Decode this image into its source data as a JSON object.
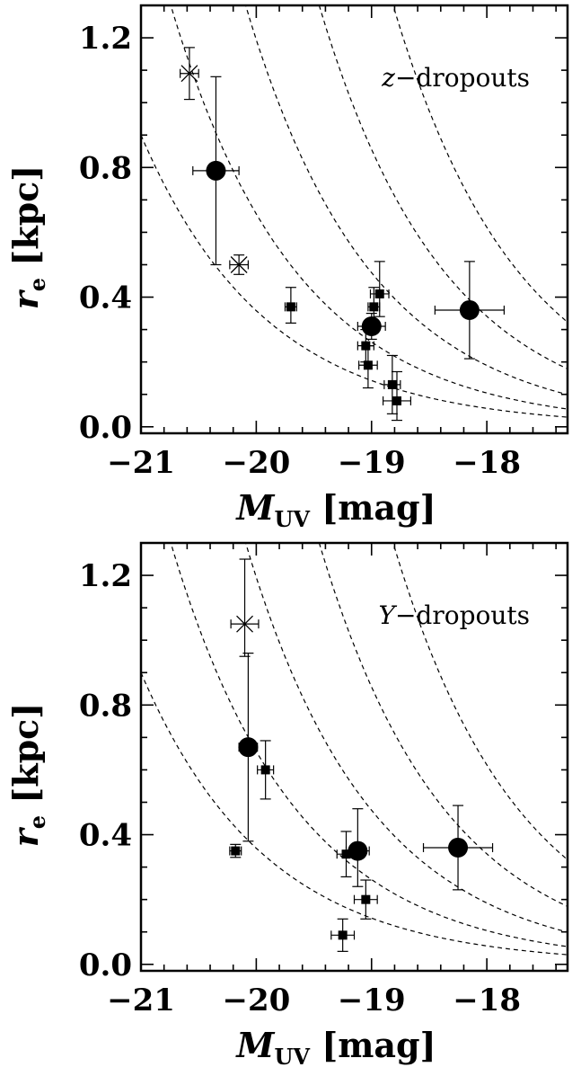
{
  "chart_data": [
    {
      "type": "scatter",
      "title": "",
      "annotation": {
        "prefix": "z",
        "text": "−dropouts"
      },
      "xlabel": {
        "main": "M",
        "sub": "UV",
        "unit": " [mag]"
      },
      "ylabel": {
        "main": "r",
        "sub": "e",
        "unit": " [kpc]"
      },
      "xlim": [
        -21,
        -17.3
      ],
      "ylim": [
        -0.02,
        1.3
      ],
      "xticks": [
        -21,
        -20,
        -19,
        -18
      ],
      "xtick_labels": [
        "−21",
        "−20",
        "−19",
        "−18"
      ],
      "yticks": [
        0.0,
        0.4,
        0.8,
        1.2
      ],
      "ytick_labels": [
        "0.0",
        "0.4",
        "0.8",
        "1.2"
      ],
      "curve_constants": [
        1.2,
        2.2,
        4.0,
        7.2,
        13.0
      ],
      "series": [
        {
          "marker": "square",
          "points": [
            {
              "x": -19.7,
              "y": 0.37,
              "xerr": 0.05,
              "yerr": [
                0.05,
                0.06
              ]
            },
            {
              "x": -19.05,
              "y": 0.25,
              "xerr": 0.07,
              "yerr": [
                0.05,
                0.05
              ]
            },
            {
              "x": -19.03,
              "y": 0.19,
              "xerr": 0.08,
              "yerr": [
                0.07,
                0.06
              ]
            },
            {
              "x": -18.98,
              "y": 0.37,
              "xerr": 0.05,
              "yerr": [
                0.05,
                0.06
              ]
            },
            {
              "x": -18.93,
              "y": 0.41,
              "xerr": 0.08,
              "yerr": [
                0.07,
                0.1
              ]
            },
            {
              "x": -18.82,
              "y": 0.13,
              "xerr": 0.07,
              "yerr": [
                0.09,
                0.09
              ]
            },
            {
              "x": -18.78,
              "y": 0.08,
              "xerr": 0.12,
              "yerr": [
                0.06,
                0.09
              ]
            }
          ]
        },
        {
          "marker": "circle",
          "points": [
            {
              "x": -20.35,
              "y": 0.79,
              "xerr": 0.2,
              "yerr": [
                0.29,
                0.29
              ]
            },
            {
              "x": -19.0,
              "y": 0.31,
              "xerr": 0.12,
              "yerr": [
                0.04,
                0.04
              ]
            },
            {
              "x": -18.15,
              "y": 0.36,
              "xerr": 0.3,
              "yerr": [
                0.15,
                0.15
              ]
            }
          ]
        },
        {
          "marker": "cross",
          "points": [
            {
              "x": -20.58,
              "y": 1.09,
              "xerr": 0.08,
              "yerr": [
                0.08,
                0.08
              ]
            },
            {
              "x": -20.15,
              "y": 0.5,
              "xerr": 0.08,
              "yerr": [
                0.03,
                0.03
              ]
            }
          ]
        }
      ]
    },
    {
      "type": "scatter",
      "title": "",
      "annotation": {
        "prefix": "Y",
        "text": "−dropouts"
      },
      "xlabel": {
        "main": "M",
        "sub": "UV",
        "unit": " [mag]"
      },
      "ylabel": {
        "main": "r",
        "sub": "e",
        "unit": " [kpc]"
      },
      "xlim": [
        -21,
        -17.3
      ],
      "ylim": [
        -0.02,
        1.3
      ],
      "xticks": [
        -21,
        -20,
        -19,
        -18
      ],
      "xtick_labels": [
        "−21",
        "−20",
        "−19",
        "−18"
      ],
      "yticks": [
        0.0,
        0.4,
        0.8,
        1.2
      ],
      "ytick_labels": [
        "0.0",
        "0.4",
        "0.8",
        "1.2"
      ],
      "curve_constants": [
        1.2,
        2.2,
        4.0,
        7.2,
        13.0
      ],
      "series": [
        {
          "marker": "square",
          "points": [
            {
              "x": -20.18,
              "y": 0.35,
              "xerr": 0.05,
              "yerr": [
                0.02,
                0.02
              ]
            },
            {
              "x": -19.92,
              "y": 0.6,
              "xerr": 0.07,
              "yerr": [
                0.09,
                0.09
              ]
            },
            {
              "x": -19.22,
              "y": 0.34,
              "xerr": 0.08,
              "yerr": [
                0.07,
                0.07
              ]
            },
            {
              "x": -19.25,
              "y": 0.09,
              "xerr": 0.1,
              "yerr": [
                0.05,
                0.05
              ]
            },
            {
              "x": -19.05,
              "y": 0.2,
              "xerr": 0.1,
              "yerr": [
                0.06,
                0.06
              ]
            }
          ]
        },
        {
          "marker": "circle",
          "points": [
            {
              "x": -20.07,
              "y": 0.67,
              "xerr": 0.08,
              "yerr": [
                0.29,
                0.29
              ]
            },
            {
              "x": -19.12,
              "y": 0.35,
              "xerr": 0.1,
              "yerr": [
                0.11,
                0.13
              ]
            },
            {
              "x": -18.25,
              "y": 0.36,
              "xerr": 0.3,
              "yerr": [
                0.13,
                0.13
              ]
            }
          ]
        },
        {
          "marker": "cross",
          "points": [
            {
              "x": -20.1,
              "y": 1.05,
              "xerr": 0.12,
              "yerr": [
                0.1,
                0.2
              ]
            }
          ]
        }
      ]
    }
  ]
}
